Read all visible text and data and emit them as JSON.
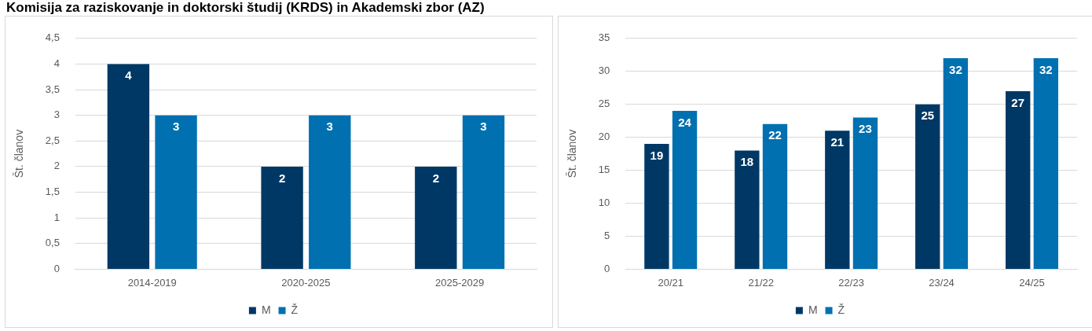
{
  "chart_data": [
    {
      "type": "bar",
      "title": "Komisija za raziskovanje in doktorski študij (KRDS) in Akademski zbor (AZ)",
      "ylabel": "Št. članov",
      "categories": [
        "2014-2019",
        "2020-2025",
        "2025-2029"
      ],
      "series": [
        {
          "name": "M",
          "color": "#003865",
          "values": [
            4,
            2,
            2
          ]
        },
        {
          "name": "Ž",
          "color": "#0070b0",
          "values": [
            3,
            3,
            3
          ]
        }
      ],
      "ylim": [
        0,
        4.5
      ],
      "yticks": [
        0,
        {
          "value": 0.5,
          "label": "0,5"
        },
        1,
        {
          "value": 1.5,
          "label": "1,5"
        },
        2,
        {
          "value": 2.5,
          "label": "2,5"
        },
        3,
        {
          "value": 3.5,
          "label": "3,5"
        },
        4,
        {
          "value": 4.5,
          "label": "4,5"
        }
      ],
      "grid": "y",
      "legend": "bottom",
      "data_labels": true
    },
    {
      "type": "bar",
      "ylabel": "Št. članov",
      "categories": [
        "20/21",
        "21/22",
        "22/23",
        "23/24",
        "24/25"
      ],
      "series": [
        {
          "name": "M",
          "color": "#003865",
          "values": [
            19,
            18,
            21,
            25,
            27
          ]
        },
        {
          "name": "Ž",
          "color": "#0070b0",
          "values": [
            24,
            22,
            23,
            32,
            32
          ]
        }
      ],
      "ylim": [
        0,
        35
      ],
      "yticks": [
        0,
        5,
        10,
        15,
        20,
        25,
        30,
        35
      ],
      "grid": "y",
      "legend": "bottom",
      "data_labels": true
    }
  ]
}
